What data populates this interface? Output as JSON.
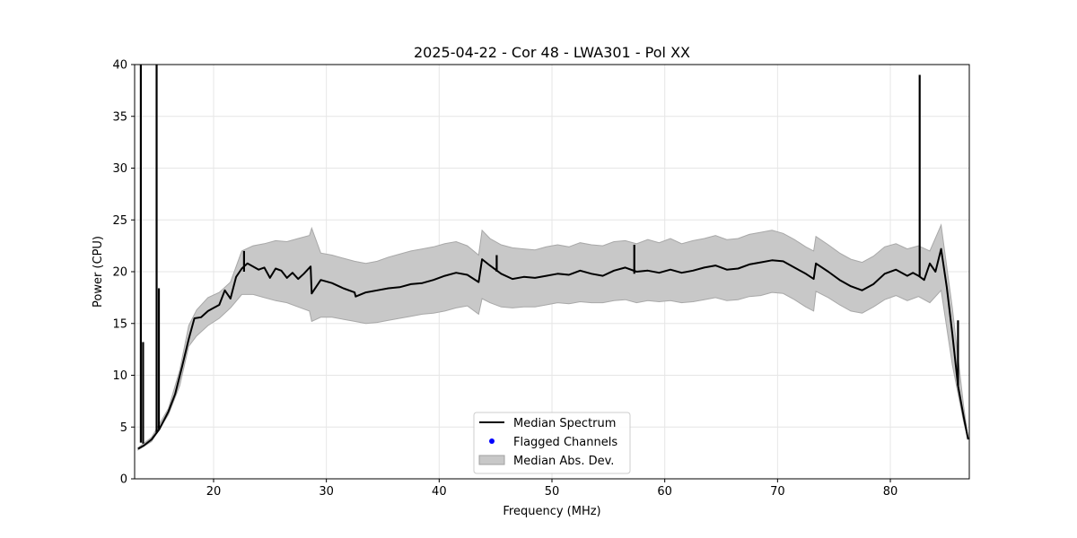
{
  "chart_data": {
    "type": "line",
    "title": "2025-04-22 - Cor 48 - LWA301 - Pol XX",
    "xlabel": "Frequency (MHz)",
    "ylabel": "Power (CPU)",
    "xlim": [
      13,
      87
    ],
    "ylim": [
      0,
      40
    ],
    "xticks": [
      20,
      30,
      40,
      50,
      60,
      70,
      80
    ],
    "yticks": [
      0,
      5,
      10,
      15,
      20,
      25,
      30,
      35,
      40
    ],
    "grid": true,
    "legend_position": "bottom-center",
    "legend": [
      {
        "label": "Median Spectrum",
        "kind": "line",
        "color": "#000000"
      },
      {
        "label": "Flagged Channels",
        "kind": "dot",
        "color": "#0000ff"
      },
      {
        "label": "Median Abs. Dev.",
        "kind": "patch",
        "color": "#c8c8c8"
      }
    ],
    "series": [
      {
        "name": "Median Spectrum",
        "color": "#000000",
        "x": [
          13.3,
          13.8,
          14.5,
          15.2,
          16.0,
          16.6,
          17.2,
          17.8,
          18.3,
          18.9,
          19.5,
          20.0,
          20.5,
          21.0,
          21.5,
          22.0,
          22.5,
          23.0,
          23.5,
          24.0,
          24.5,
          25.0,
          25.5,
          26.0,
          26.5,
          27.0,
          27.5,
          28.0,
          28.6,
          28.7,
          29.5,
          30.5,
          31.5,
          32.5,
          32.6,
          33.5,
          34.5,
          35.5,
          36.5,
          37.5,
          38.5,
          39.5,
          40.5,
          41.5,
          42.5,
          43.5,
          43.8,
          44.5,
          45.5,
          46.5,
          47.5,
          48.5,
          49.5,
          50.5,
          51.5,
          52.5,
          53.5,
          54.5,
          55.5,
          56.5,
          57.5,
          58.5,
          59.5,
          60.5,
          61.5,
          62.5,
          63.5,
          64.5,
          65.5,
          66.5,
          67.5,
          68.5,
          69.5,
          70.5,
          71.5,
          72.5,
          73.2,
          73.4,
          74.5,
          75.5,
          76.5,
          77.5,
          78.5,
          79.5,
          80.5,
          81.5,
          82.0,
          82.5,
          83.0,
          83.5,
          84.0,
          84.5,
          85.0,
          85.5,
          86.0,
          86.5,
          86.9
        ],
        "values": [
          2.9,
          3.2,
          3.8,
          4.8,
          6.5,
          8.2,
          10.8,
          13.5,
          15.5,
          15.6,
          16.2,
          16.5,
          16.8,
          18.2,
          17.4,
          19.5,
          20.3,
          20.8,
          20.5,
          20.2,
          20.4,
          19.4,
          20.3,
          20.1,
          19.4,
          19.9,
          19.3,
          19.8,
          20.5,
          17.9,
          19.2,
          18.9,
          18.4,
          18.0,
          17.6,
          18.0,
          18.2,
          18.4,
          18.5,
          18.8,
          18.9,
          19.2,
          19.6,
          19.9,
          19.7,
          19.0,
          21.2,
          20.6,
          19.8,
          19.3,
          19.5,
          19.4,
          19.6,
          19.8,
          19.7,
          20.1,
          19.8,
          19.6,
          20.1,
          20.4,
          20.0,
          20.1,
          19.9,
          20.2,
          19.9,
          20.1,
          20.4,
          20.6,
          20.2,
          20.3,
          20.7,
          20.9,
          21.1,
          21.0,
          20.4,
          19.8,
          19.3,
          20.8,
          20.0,
          19.2,
          18.6,
          18.2,
          18.8,
          19.8,
          20.2,
          19.6,
          19.9,
          19.6,
          19.2,
          20.8,
          20.0,
          22.2,
          18.5,
          14.0,
          9.0,
          6.0,
          3.8
        ]
      },
      {
        "name": "Median Abs. Dev.",
        "color": "#c8c8c8",
        "x": [
          13.3,
          14.5,
          16.0,
          17.0,
          17.8,
          18.5,
          19.5,
          20.5,
          21.5,
          22.5,
          23.5,
          24.5,
          25.5,
          26.5,
          27.5,
          28.5,
          28.7,
          29.5,
          30.5,
          31.5,
          32.5,
          33.5,
          34.5,
          35.5,
          36.5,
          37.5,
          38.5,
          39.5,
          40.5,
          41.5,
          42.5,
          43.5,
          43.8,
          44.5,
          45.5,
          46.5,
          47.5,
          48.5,
          49.5,
          50.5,
          51.5,
          52.5,
          53.5,
          54.5,
          55.5,
          56.5,
          57.5,
          58.5,
          59.5,
          60.5,
          61.5,
          62.5,
          63.5,
          64.5,
          65.5,
          66.5,
          67.5,
          68.5,
          69.5,
          70.5,
          71.5,
          72.5,
          73.2,
          73.4,
          74.5,
          75.5,
          76.5,
          77.5,
          78.5,
          79.5,
          80.5,
          81.5,
          82.5,
          83.5,
          84.5,
          85.5,
          86.5,
          86.9
        ],
        "lower": [
          2.8,
          3.6,
          6.2,
          9.0,
          12.8,
          13.8,
          14.8,
          15.5,
          16.5,
          17.8,
          17.8,
          17.5,
          17.2,
          17.0,
          16.6,
          16.2,
          15.2,
          15.6,
          15.6,
          15.4,
          15.2,
          15.0,
          15.1,
          15.3,
          15.5,
          15.7,
          15.9,
          16.0,
          16.2,
          16.5,
          16.7,
          15.9,
          17.4,
          17.0,
          16.6,
          16.5,
          16.6,
          16.6,
          16.8,
          17.0,
          16.9,
          17.1,
          17.0,
          17.0,
          17.2,
          17.3,
          17.0,
          17.2,
          17.1,
          17.2,
          17.0,
          17.1,
          17.3,
          17.5,
          17.2,
          17.3,
          17.6,
          17.7,
          18.0,
          17.9,
          17.3,
          16.6,
          16.2,
          18.1,
          17.5,
          16.8,
          16.2,
          16.0,
          16.6,
          17.3,
          17.7,
          17.2,
          17.6,
          17.0,
          18.2,
          11.0,
          5.5,
          3.8
        ],
        "upper": [
          3.0,
          4.0,
          6.8,
          10.5,
          14.8,
          16.3,
          17.5,
          18.0,
          19.0,
          22.0,
          22.5,
          22.7,
          23.0,
          22.9,
          23.2,
          23.5,
          24.2,
          21.8,
          21.6,
          21.3,
          21.0,
          20.8,
          21.0,
          21.4,
          21.7,
          22.0,
          22.2,
          22.4,
          22.7,
          22.9,
          22.5,
          21.6,
          24.0,
          23.2,
          22.6,
          22.3,
          22.2,
          22.1,
          22.4,
          22.6,
          22.4,
          22.8,
          22.6,
          22.5,
          22.9,
          23.0,
          22.7,
          23.1,
          22.8,
          23.2,
          22.7,
          23.0,
          23.2,
          23.5,
          23.1,
          23.2,
          23.6,
          23.8,
          24.0,
          23.7,
          23.1,
          22.4,
          22.0,
          23.4,
          22.6,
          21.8,
          21.2,
          20.9,
          21.5,
          22.4,
          22.7,
          22.2,
          22.5,
          22.0,
          24.5,
          16.5,
          7.0,
          3.9
        ]
      }
    ],
    "spikes": [
      {
        "x": 13.55,
        "base": 3.5,
        "peak": 40
      },
      {
        "x": 13.75,
        "base": 3.4,
        "peak": 13.2
      },
      {
        "x": 14.95,
        "base": 4.4,
        "peak": 40
      },
      {
        "x": 15.15,
        "base": 4.8,
        "peak": 18.4
      },
      {
        "x": 22.7,
        "base": 20.0,
        "peak": 22.0
      },
      {
        "x": 45.1,
        "base": 20.0,
        "peak": 21.6
      },
      {
        "x": 57.3,
        "base": 19.8,
        "peak": 22.6
      },
      {
        "x": 82.6,
        "base": 19.5,
        "peak": 39.0
      },
      {
        "x": 86.0,
        "base": 9.0,
        "peak": 15.3
      }
    ]
  }
}
